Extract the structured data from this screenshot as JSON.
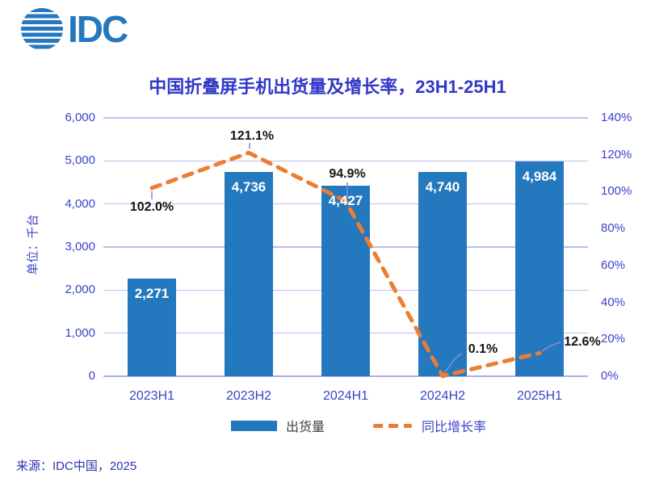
{
  "logo": {
    "text": "IDC"
  },
  "title": "中国折叠屏手机出货量及增长率，23H1-25H1",
  "chart_data": {
    "type": "bar",
    "categories": [
      "2023H1",
      "2023H2",
      "2024H1",
      "2024H2",
      "2025H1"
    ],
    "series": [
      {
        "name": "出货量",
        "type": "bar",
        "values": [
          2271,
          4736,
          4427,
          4740,
          4984
        ],
        "labels": [
          "2,271",
          "4,736",
          "4,427",
          "4,740",
          "4,984"
        ],
        "color": "#2478BE",
        "axis": "left"
      },
      {
        "name": "同比增长率",
        "type": "line",
        "dashed": true,
        "values": [
          102.0,
          121.1,
          94.9,
          0.1,
          12.6
        ],
        "labels": [
          "102.0%",
          "121.1%",
          "94.9%",
          "0.1%",
          "12.6%"
        ],
        "color": "#ED7D31",
        "axis": "right"
      }
    ],
    "left_axis": {
      "title": "单位：千台",
      "min": 0,
      "max": 6000,
      "step": 1000,
      "tick_labels": [
        "0",
        "1,000",
        "2,000",
        "3,000",
        "4,000",
        "5,000",
        "6,000"
      ]
    },
    "right_axis": {
      "min": 0,
      "max": 140,
      "step": 20,
      "unit": "%",
      "tick_labels": [
        "0%",
        "20%",
        "40%",
        "60%",
        "80%",
        "100%",
        "120%",
        "140%"
      ]
    },
    "grid": true,
    "legend_position": "bottom"
  },
  "legend": {
    "items": [
      {
        "label": "出货量",
        "swatch": "bar",
        "color": "#2478BE"
      },
      {
        "label": "同比增长率",
        "swatch": "dashed-line",
        "color": "#ED7D31"
      }
    ]
  },
  "source": "来源：IDC中国，2025",
  "colors": {
    "bar": "#2478BE",
    "line": "#ED7D31",
    "grid": "#B9BFEC",
    "axis_text": "#3A43C9",
    "title_text": "#3238C8",
    "logo_blue": "#2478BE"
  }
}
